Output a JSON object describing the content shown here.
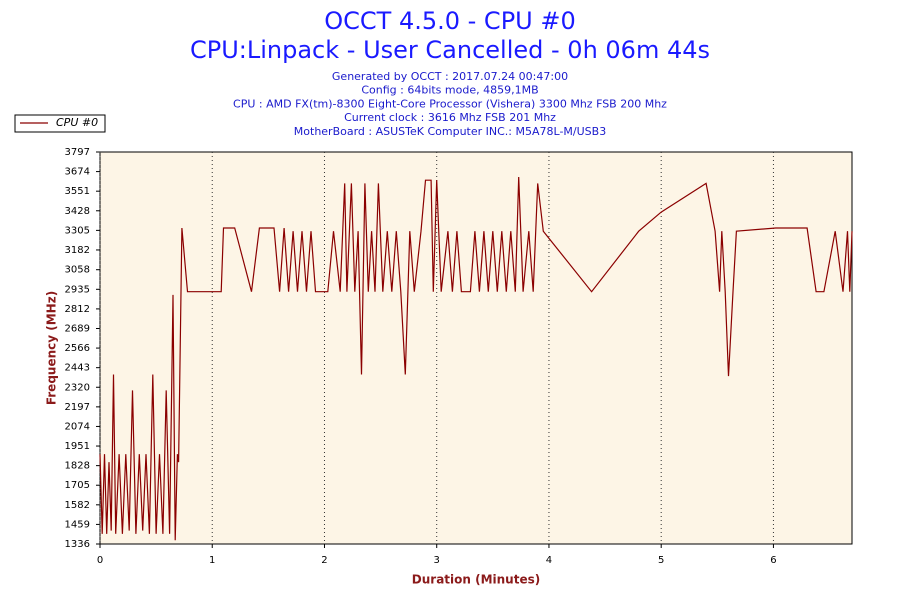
{
  "chart_data": {
    "type": "line",
    "title": "OCCT 4.5.0 - CPU #0",
    "subtitle": "CPU:Linpack - User Cancelled - 0h 06m 44s",
    "notes": [
      "Generated by OCCT : 2017.07.24 00:47:00",
      "Config : 64bits mode, 4859,1MB",
      "CPU : AMD FX(tm)-8300 Eight-Core Processor (Vishera) 3300 Mhz FSB 200 Mhz",
      "Current clock : 3616 Mhz FSB 201 Mhz",
      "MotherBoard : ASUSTeK Computer INC.: M5A78L-M/USB3"
    ],
    "xlabel": "Duration (Minutes)",
    "ylabel": "Frequency (MHz)",
    "xlim": [
      0,
      6.7
    ],
    "xticks": [
      0,
      1,
      2,
      3,
      4,
      5,
      6
    ],
    "ylim": [
      1336,
      3797
    ],
    "yticks": [
      1336,
      1459,
      1582,
      1705,
      1828,
      1951,
      2074,
      2197,
      2320,
      2443,
      2566,
      2689,
      2812,
      2935,
      3058,
      3182,
      3305,
      3428,
      3551,
      3674,
      3797
    ],
    "grid": true,
    "legend": "top-left",
    "x": [
      0,
      0.02,
      0.04,
      0.06,
      0.08,
      0.1,
      0.12,
      0.14,
      0.17,
      0.2,
      0.23,
      0.26,
      0.29,
      0.32,
      0.35,
      0.38,
      0.41,
      0.44,
      0.47,
      0.5,
      0.53,
      0.56,
      0.59,
      0.62,
      0.65,
      0.67,
      0.69,
      0.7,
      0.73,
      0.78,
      1.08,
      1.1,
      1.2,
      1.35,
      1.42,
      1.55,
      1.6,
      1.64,
      1.68,
      1.72,
      1.76,
      1.8,
      1.84,
      1.88,
      1.92,
      2.03,
      2.08,
      2.14,
      2.18,
      2.2,
      2.24,
      2.27,
      2.3,
      2.33,
      2.36,
      2.39,
      2.42,
      2.45,
      2.48,
      2.52,
      2.56,
      2.6,
      2.64,
      2.68,
      2.72,
      2.76,
      2.8,
      2.86,
      2.9,
      2.95,
      2.97,
      3.0,
      3.04,
      3.1,
      3.14,
      3.18,
      3.22,
      3.3,
      3.34,
      3.38,
      3.42,
      3.46,
      3.5,
      3.54,
      3.58,
      3.62,
      3.66,
      3.7,
      3.73,
      3.77,
      3.82,
      3.86,
      3.9,
      3.95,
      4.38,
      4.8,
      5.0,
      5.4,
      5.48,
      5.52,
      5.54,
      5.57,
      5.6,
      5.64,
      5.67,
      6.02,
      6.3,
      6.38,
      6.45,
      6.55,
      6.62,
      6.66,
      6.68,
      6.7
    ],
    "series": [
      {
        "name": "CPU #0",
        "color": "#8b0000",
        "values": [
          1900,
          1400,
          1900,
          1400,
          1850,
          1420,
          2400,
          1400,
          1900,
          1400,
          1900,
          1420,
          2300,
          1400,
          1900,
          1420,
          1900,
          1400,
          2400,
          1400,
          1900,
          1400,
          2300,
          1400,
          2900,
          1360,
          1900,
          1850,
          3320,
          2920,
          2920,
          3320,
          3320,
          2920,
          3320,
          3320,
          2920,
          3320,
          2920,
          3300,
          2920,
          3300,
          2920,
          3300,
          2920,
          2920,
          3300,
          2920,
          3600,
          2920,
          3600,
          2920,
          3300,
          2400,
          3600,
          2920,
          3300,
          2920,
          3600,
          2920,
          3300,
          2920,
          3300,
          2920,
          2400,
          3300,
          2920,
          3300,
          3620,
          3620,
          2920,
          3620,
          2920,
          3300,
          2920,
          3300,
          2920,
          2920,
          3300,
          2920,
          3300,
          2920,
          3300,
          2920,
          3300,
          2920,
          3300,
          2920,
          3640,
          2920,
          3300,
          2920,
          3600,
          3300,
          2920,
          3300,
          3420,
          3600,
          3300,
          2920,
          3300,
          2920,
          2390,
          2920,
          3300,
          3320,
          3320,
          2920,
          2920,
          3300,
          2920,
          3300,
          2920,
          3300
        ]
      }
    ]
  }
}
